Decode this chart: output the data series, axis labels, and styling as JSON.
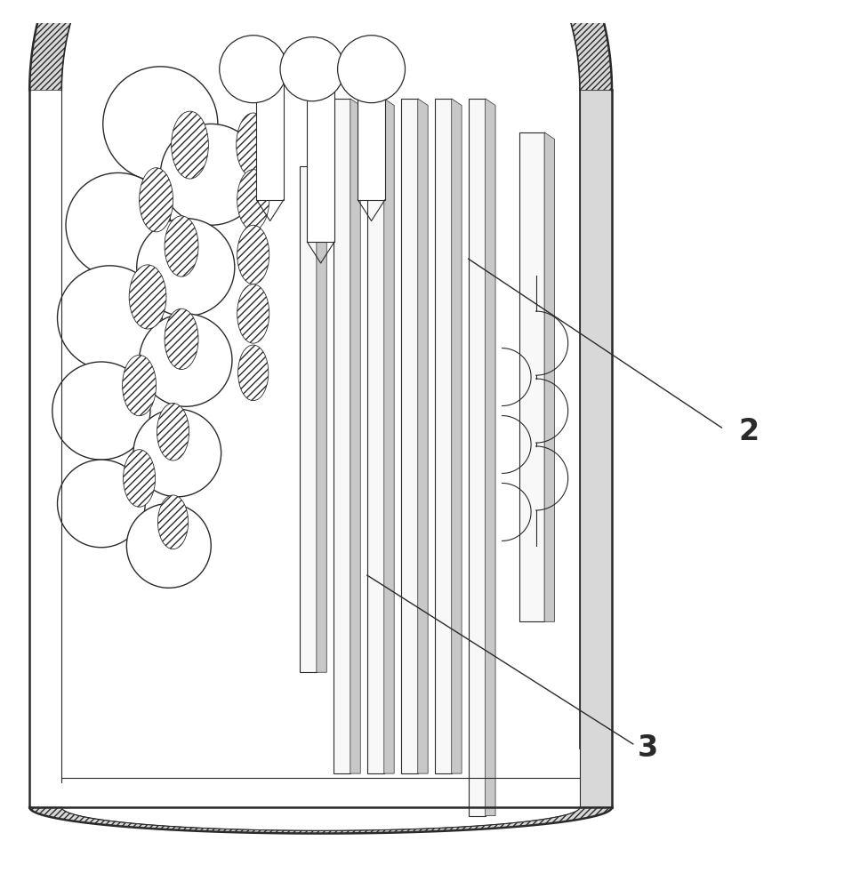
{
  "label_2": "2",
  "label_3": "3",
  "bg_color": "#ffffff",
  "line_color": "#2a2a2a",
  "wall_gray": "#d8d8d8",
  "tube_face": "#f5f5f5",
  "tube_side": "#c8c8c8",
  "hatch_fill": "#ffffff",
  "top_ring_gray": "#cccccc"
}
